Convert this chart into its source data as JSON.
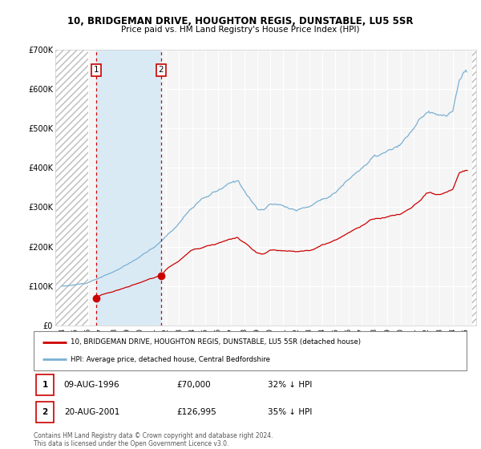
{
  "title": "10, BRIDGEMAN DRIVE, HOUGHTON REGIS, DUNSTABLE, LU5 5SR",
  "subtitle": "Price paid vs. HM Land Registry's House Price Index (HPI)",
  "legend_line1": "10, BRIDGEMAN DRIVE, HOUGHTON REGIS, DUNSTABLE, LU5 5SR (detached house)",
  "legend_line2": "HPI: Average price, detached house, Central Bedfordshire",
  "transaction1_label": "1",
  "transaction1_date": "09-AUG-1996",
  "transaction1_price": "£70,000",
  "transaction1_hpi": "32% ↓ HPI",
  "transaction2_label": "2",
  "transaction2_date": "20-AUG-2001",
  "transaction2_price": "£126,995",
  "transaction2_hpi": "35% ↓ HPI",
  "footer": "Contains HM Land Registry data © Crown copyright and database right 2024.\nThis data is licensed under the Open Government Licence v3.0.",
  "red_line_color": "#cc0000",
  "blue_line_color": "#7ab0d4",
  "blue_shade_color": "#daeaf5",
  "background_color": "#ffffff",
  "plot_bg_color": "#f5f5f5",
  "grid_color": "#ffffff",
  "ylim": [
    0,
    700000
  ],
  "yticks": [
    0,
    100000,
    200000,
    300000,
    400000,
    500000,
    600000,
    700000
  ],
  "ytick_labels": [
    "£0",
    "£100K",
    "£200K",
    "£300K",
    "£400K",
    "£500K",
    "£600K",
    "£700K"
  ],
  "vline1_x": 1996.62,
  "vline2_x": 2001.62,
  "marker1_x": 1996.62,
  "marker1_y": 70000,
  "marker2_x": 2001.62,
  "marker2_y": 126995,
  "hatch_start": 1993.5,
  "hatch_end": 1996.0,
  "hatch_end2": 2025.5,
  "xmin": 1993.5,
  "xmax": 2025.8
}
